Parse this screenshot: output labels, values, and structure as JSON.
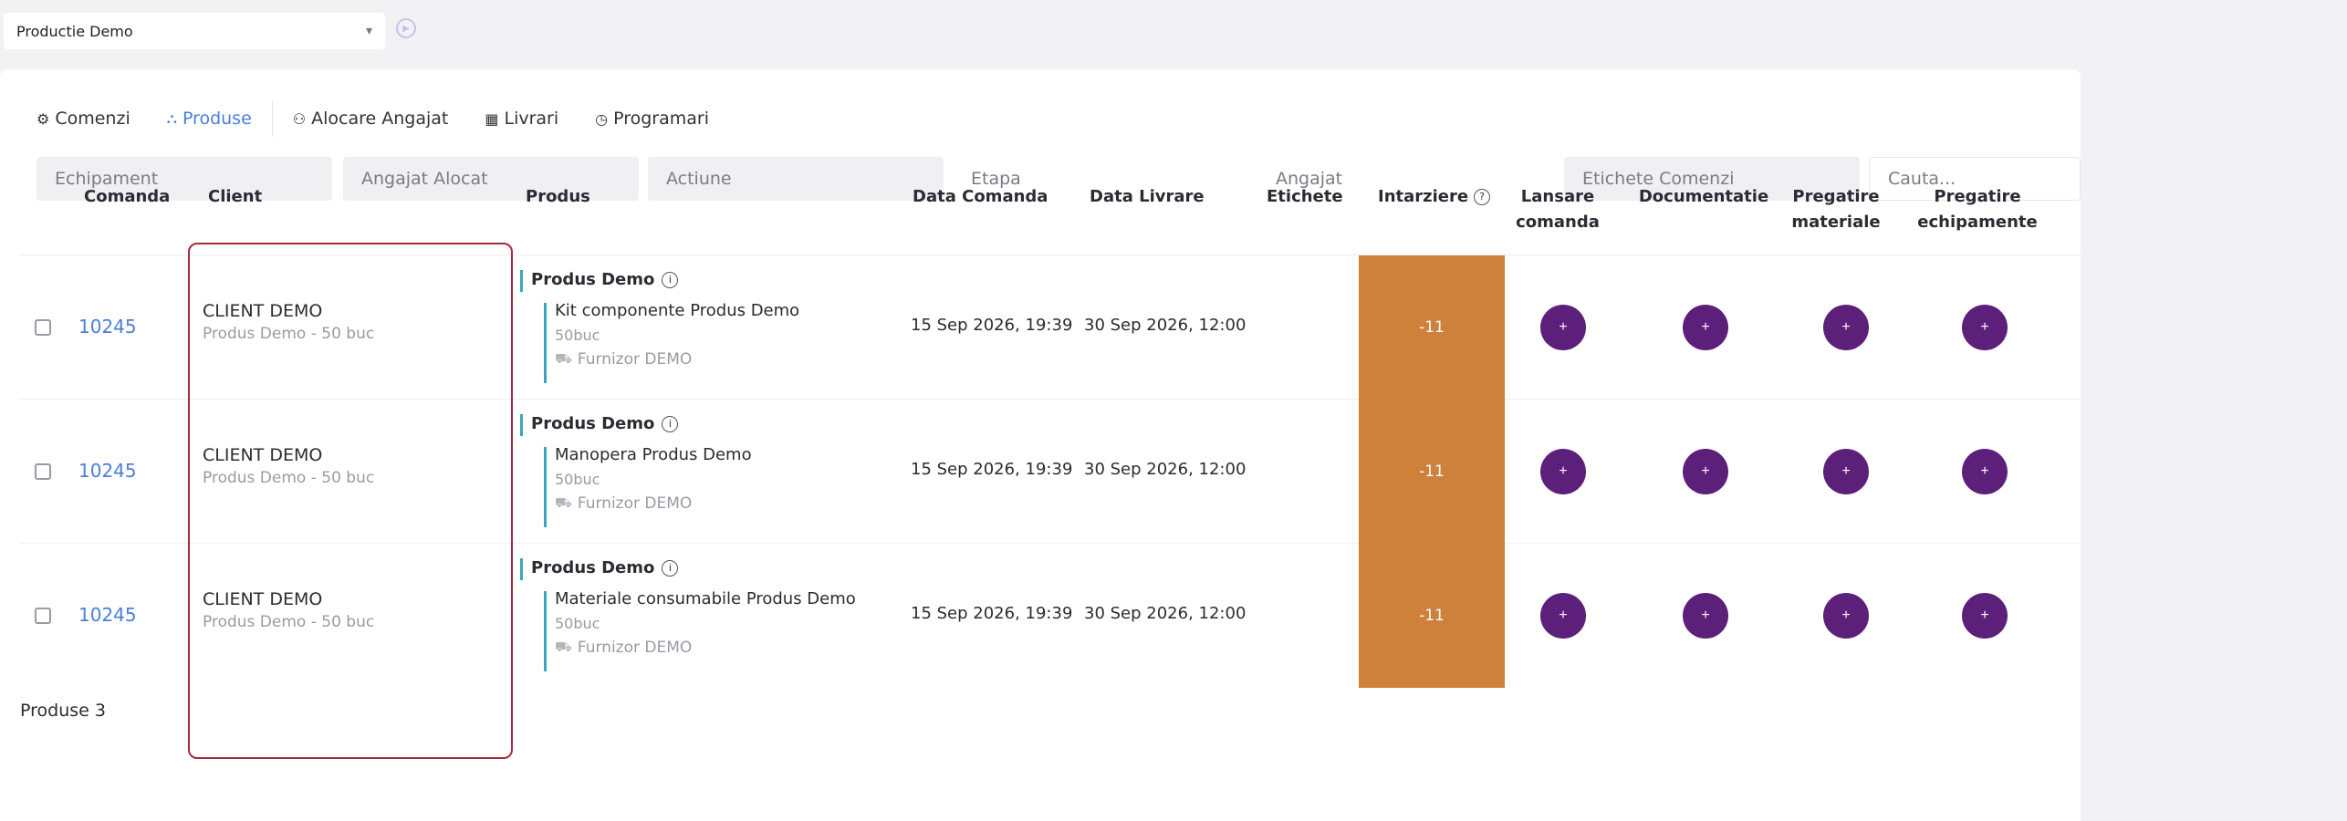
{
  "project_selector": {
    "value": "Productie Demo",
    "caret": "▾"
  },
  "tabs": [
    {
      "label": "Comenzi",
      "icon": "gears-icon",
      "active": false
    },
    {
      "label": "Produse",
      "icon": "hierarchy-icon",
      "active": true
    },
    {
      "label": "Alocare Angajat",
      "icon": "people-icon",
      "active": false
    },
    {
      "label": "Livrari",
      "icon": "calendar-grid-icon",
      "active": false
    },
    {
      "label": "Programari",
      "icon": "clock-icon",
      "active": false
    }
  ],
  "filters": {
    "echipament": "Echipament",
    "angajat_alocat": "Angajat Alocat",
    "actiune": "Actiune",
    "etapa": "Etapa",
    "angajat": "Angajat",
    "etichete_comenzi": "Etichete Comenzi",
    "cauta_placeholder": "Cauta..."
  },
  "columns": {
    "comanda": "Comanda",
    "client": "Client",
    "produs": "Produs",
    "data_comanda": "Data Comanda",
    "data_livrare": "Data Livrare",
    "etichete": "Etichete",
    "intarziere": "Intarziere",
    "lansare_1": "Lansare",
    "lansare_2": "comanda",
    "documentatie": "Documentatie",
    "pregatire_mat_1": "Pregatire",
    "pregatire_mat_2": "materiale",
    "pregatire_ech_1": "Pregatire",
    "pregatire_ech_2": "echipamente"
  },
  "rows": [
    {
      "order": "10245",
      "client": "CLIENT DEMO",
      "client_sub": "Produs Demo - 50 buc",
      "product": "Produs Demo",
      "item": "Kit componente Produs Demo",
      "qty": "50buc",
      "supplier": "Furnizor DEMO",
      "date_order": "15 Sep 2026, 19:39",
      "date_delivery": "30 Sep 2026, 12:00",
      "delay": "-11"
    },
    {
      "order": "10245",
      "client": "CLIENT DEMO",
      "client_sub": "Produs Demo - 50 buc",
      "product": "Produs Demo",
      "item": "Manopera Produs Demo",
      "qty": "50buc",
      "supplier": "Furnizor DEMO",
      "date_order": "15 Sep 2026, 19:39",
      "date_delivery": "30 Sep 2026, 12:00",
      "delay": "-11"
    },
    {
      "order": "10245",
      "client": "CLIENT DEMO",
      "client_sub": "Produs Demo - 50 buc",
      "product": "Produs Demo",
      "item": "Materiale consumabile Produs Demo",
      "qty": "50buc",
      "supplier": "Furnizor DEMO",
      "date_order": "15 Sep 2026, 19:39",
      "date_delivery": "30 Sep 2026, 12:00",
      "delay": "-11"
    }
  ],
  "footer": {
    "text": "Produse 3"
  },
  "colors": {
    "accent": "#4a7fd8",
    "delay": "#cd813b",
    "action": "#5c1f7a",
    "highlight": "#a62a3f",
    "product_bar": "#3aa7b8"
  }
}
